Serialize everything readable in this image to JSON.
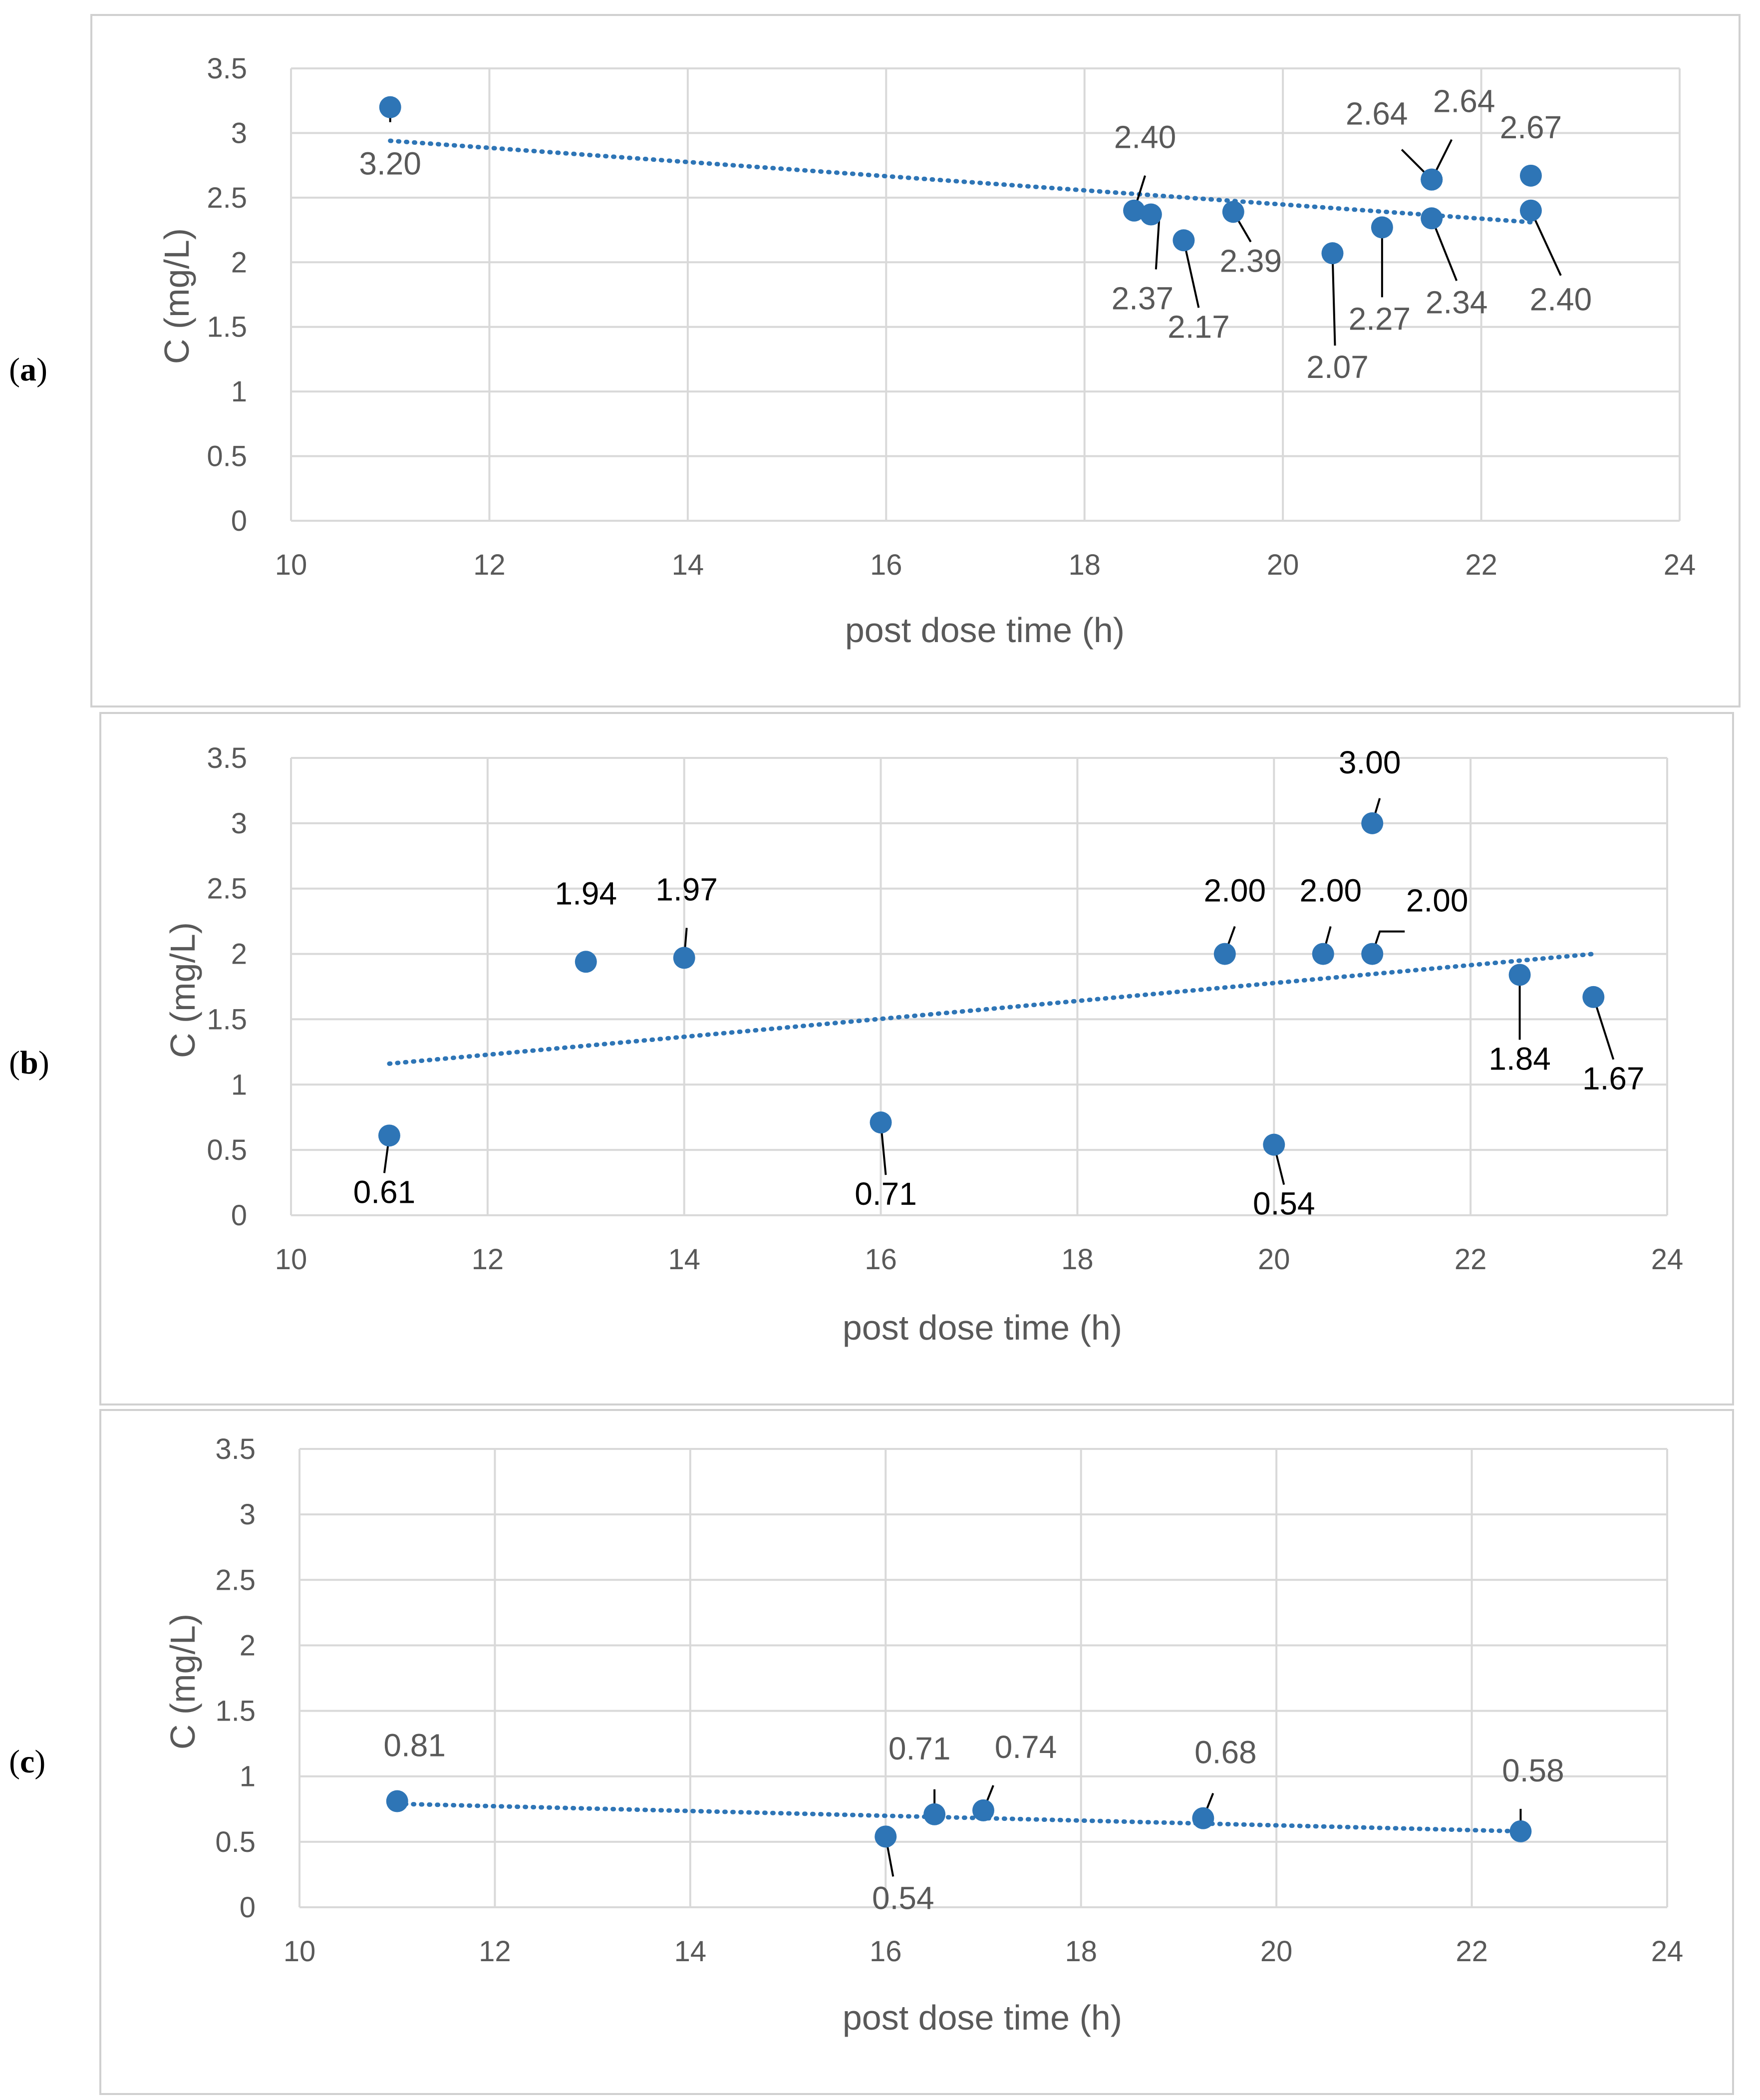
{
  "figure": {
    "panels": [
      {
        "id": "a",
        "label_open": "(",
        "label_letter": "a",
        "label_close": ")",
        "label_color": "#595959"
      },
      {
        "id": "b",
        "label_open": "(",
        "label_letter": "b",
        "label_close": ")",
        "label_color": "#000000"
      },
      {
        "id": "c",
        "label_open": "(",
        "label_letter": "c",
        "label_close": ")",
        "label_color": "#595959"
      }
    ]
  },
  "colors": {
    "marker": "#2E75B6",
    "trendline": "#2E75B6",
    "gridline": "#D9D9D9",
    "frame": "#D0D0D0",
    "tick_text": "#595959"
  },
  "chart_data": [
    {
      "panel": "a",
      "type": "scatter",
      "title": "",
      "xlabel": "post dose time (h)",
      "ylabel": "C (mg/L)",
      "xlim": [
        10,
        24
      ],
      "ylim": [
        0,
        3.5
      ],
      "x_ticks": [
        "10",
        "12",
        "14",
        "16",
        "18",
        "20",
        "22",
        "24"
      ],
      "y_ticks": [
        "0",
        "0.5",
        "1",
        "1.5",
        "2",
        "2.5",
        "3",
        "3.5"
      ],
      "grid": true,
      "trendline": {
        "type": "linear",
        "x_start": 11,
        "x_end": 22.5,
        "y_start": 2.94,
        "y_end": 2.31
      },
      "series": [
        {
          "name": "C",
          "points": [
            {
              "x": 11,
              "y": 3.2,
              "label": "3.20"
            },
            {
              "x": 18.5,
              "y": 2.4,
              "label": "2.40"
            },
            {
              "x": 18.67,
              "y": 2.37,
              "label": "2.37"
            },
            {
              "x": 19,
              "y": 2.17,
              "label": "2.17"
            },
            {
              "x": 19.5,
              "y": 2.39,
              "label": "2.39"
            },
            {
              "x": 20.5,
              "y": 2.07,
              "label": "2.07"
            },
            {
              "x": 21,
              "y": 2.27,
              "label": "2.27"
            },
            {
              "x": 21.5,
              "y": 2.34,
              "label": "2.34"
            },
            {
              "x": 21.5,
              "y": 2.64,
              "label": "2.64"
            },
            {
              "x": 21.5,
              "y": 2.64,
              "label": "2.64"
            },
            {
              "x": 22.5,
              "y": 2.4,
              "label": "2.40"
            },
            {
              "x": 22.5,
              "y": 2.67,
              "label": "2.67"
            }
          ]
        }
      ]
    },
    {
      "panel": "b",
      "type": "scatter",
      "title": "",
      "xlabel": "post dose time (h)",
      "ylabel": "C (mg/L)",
      "xlim": [
        10,
        24
      ],
      "ylim": [
        0,
        3.5
      ],
      "x_ticks": [
        "10",
        "12",
        "14",
        "16",
        "18",
        "20",
        "22",
        "24"
      ],
      "y_ticks": [
        "0",
        "0.5",
        "1",
        "1.5",
        "2",
        "2.5",
        "3",
        "3.5"
      ],
      "grid": true,
      "trendline": {
        "type": "linear",
        "x_start": 11,
        "x_end": 23.25,
        "y_start": 1.16,
        "y_end": 2.0
      },
      "series": [
        {
          "name": "C",
          "points": [
            {
              "x": 11,
              "y": 0.61,
              "label": "0.61"
            },
            {
              "x": 13,
              "y": 1.94,
              "label": "1.94"
            },
            {
              "x": 14,
              "y": 1.97,
              "label": "1.97"
            },
            {
              "x": 16,
              "y": 0.71,
              "label": "0.71"
            },
            {
              "x": 19.5,
              "y": 2.0,
              "label": "2.00"
            },
            {
              "x": 20,
              "y": 0.54,
              "label": "0.54"
            },
            {
              "x": 20.5,
              "y": 2.0,
              "label": "2.00"
            },
            {
              "x": 21,
              "y": 3.0,
              "label": "3.00"
            },
            {
              "x": 21,
              "y": 2.0,
              "label": "2.00"
            },
            {
              "x": 22.5,
              "y": 1.84,
              "label": "1.84"
            },
            {
              "x": 23.25,
              "y": 1.67,
              "label": "1.67"
            }
          ]
        }
      ]
    },
    {
      "panel": "c",
      "type": "scatter",
      "title": "",
      "xlabel": "post dose time (h)",
      "ylabel": "C (mg/L)",
      "xlim": [
        10,
        24
      ],
      "ylim": [
        0,
        3.5
      ],
      "x_ticks": [
        "10",
        "12",
        "14",
        "16",
        "18",
        "20",
        "22",
        "24"
      ],
      "y_ticks": [
        "0",
        "0.5",
        "1",
        "1.5",
        "2",
        "2.5",
        "3",
        "3.5"
      ],
      "grid": true,
      "trendline": {
        "type": "linear",
        "x_start": 11,
        "x_end": 22.5,
        "y_start": 0.79,
        "y_end": 0.58
      },
      "series": [
        {
          "name": "C",
          "points": [
            {
              "x": 11,
              "y": 0.81,
              "label": "0.81"
            },
            {
              "x": 16,
              "y": 0.54,
              "label": "0.54"
            },
            {
              "x": 16.5,
              "y": 0.71,
              "label": "0.71"
            },
            {
              "x": 17,
              "y": 0.74,
              "label": "0.74"
            },
            {
              "x": 19.25,
              "y": 0.68,
              "label": "0.68"
            },
            {
              "x": 22.5,
              "y": 0.58,
              "label": "0.58"
            }
          ]
        }
      ]
    }
  ]
}
